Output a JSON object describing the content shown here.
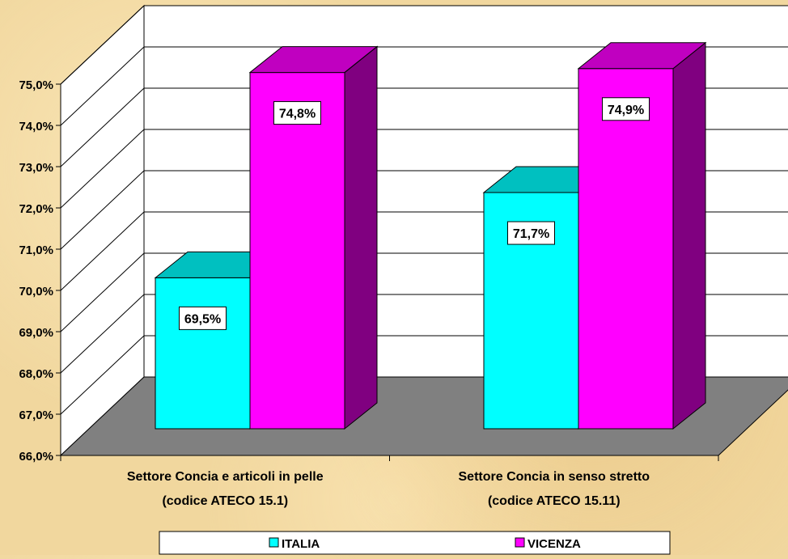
{
  "chart_data": {
    "type": "bar",
    "style": "3d-clustered-column",
    "categories": [
      [
        "Settore Concia e articoli in pelle",
        "(codice ATECO 15.1)"
      ],
      [
        "Settore Concia in senso stretto",
        "(codice ATECO 15.11)"
      ]
    ],
    "series": [
      {
        "name": "ITALIA",
        "values": [
          69.5,
          71.7
        ],
        "labels": [
          "69,5%",
          "71,7%"
        ],
        "color": "#00ffff",
        "side_color": "#008080",
        "top_color": "#00c0c0"
      },
      {
        "name": "VICENZA",
        "values": [
          74.8,
          74.9
        ],
        "labels": [
          "74,8%",
          "74,9%"
        ],
        "color": "#ff00ff",
        "side_color": "#800080",
        "top_color": "#c000c0"
      }
    ],
    "ylim": [
      66,
      75
    ],
    "yticks": [
      66,
      67,
      68,
      69,
      70,
      71,
      72,
      73,
      74,
      75
    ],
    "ytick_labels": [
      "66,0%",
      "67,0%",
      "68,0%",
      "69,0%",
      "70,0%",
      "71,0%",
      "72,0%",
      "73,0%",
      "74,0%",
      "75,0%"
    ],
    "grid": true,
    "legend_position": "bottom",
    "floor_color": "#808080",
    "wall_color": "#ffffff"
  }
}
